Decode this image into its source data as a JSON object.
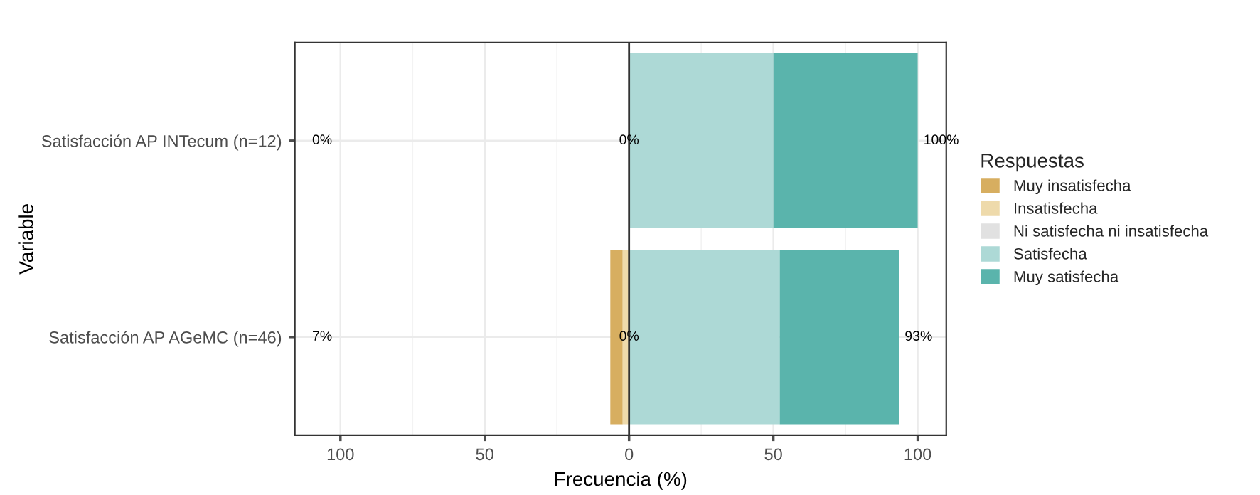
{
  "chart_data": {
    "type": "bar",
    "orientation": "horizontal",
    "xlabel": "Frecuencia (%)",
    "ylabel": "Variable",
    "legend_title": "Respuestas",
    "legend": "right",
    "grid": true,
    "categories": [
      "Satisfacción AP INTecum (n=12)",
      "Satisfacción AP AGeMC (n=46)"
    ],
    "series": [
      {
        "name": "Muy insatisfecha",
        "color": "#d7ae60",
        "base": [
          null,
          -6.5
        ],
        "values": [
          0,
          4.3
        ]
      },
      {
        "name": "Insatisfecha",
        "color": "#eedaab",
        "base": [
          null,
          -2.2
        ],
        "values": [
          0,
          2.2
        ]
      },
      {
        "name": "Ni satisfecha ni insatisfecha",
        "color": "#e1e1e1",
        "values": [
          0,
          0
        ]
      },
      {
        "name": "Satisfecha",
        "color": "#add9d6",
        "base": [
          0,
          0
        ],
        "values": [
          50,
          52.2
        ]
      },
      {
        "name": "Muy satisfecha",
        "color": "#5ab4ac",
        "base": [
          50,
          52.2
        ],
        "values": [
          50,
          41.3
        ]
      }
    ],
    "xlim": [
      -115.8,
      109.9
    ],
    "xticks": [
      {
        "value": -100,
        "label": "100"
      },
      {
        "value": -50,
        "label": "50"
      },
      0,
      50,
      100
    ],
    "ref_lines": [
      {
        "axis": "x",
        "value": 0,
        "color": "#333333"
      }
    ],
    "annotations": [
      "0%",
      "0%",
      "100%",
      "7%",
      "0%",
      "93%"
    ]
  }
}
